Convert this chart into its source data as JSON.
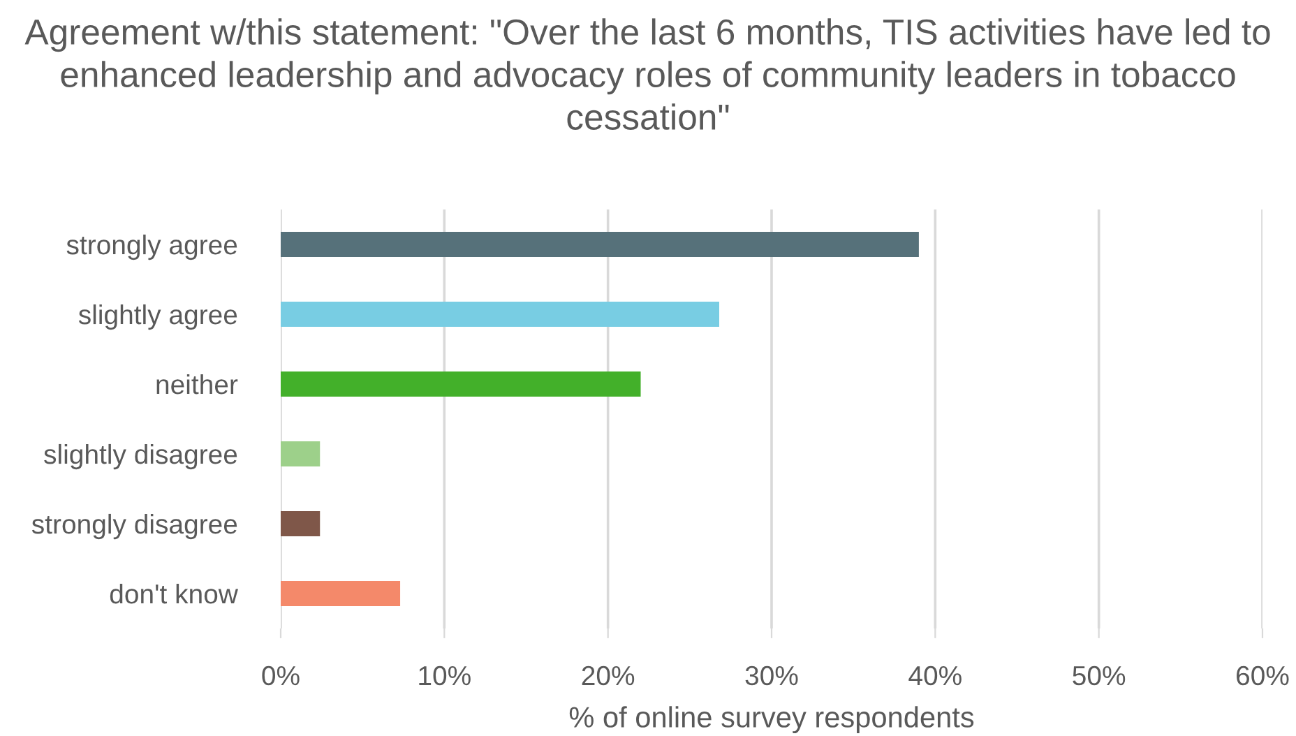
{
  "chart_data": {
    "type": "bar",
    "orientation": "horizontal",
    "title": "Agreement w/this statement: \"Over the last 6 months, TIS activities have led to enhanced leadership and advocacy roles of community leaders in tobacco cessation\"",
    "xlabel": "% of online survey respondents",
    "categories": [
      "strongly agree",
      "slightly agree",
      "neither",
      "slightly disagree",
      "strongly disagree",
      "don't know"
    ],
    "values": [
      39.0,
      26.8,
      22.0,
      2.4,
      2.4,
      7.3
    ],
    "colors": [
      "#56717a",
      "#78cde3",
      "#43b02a",
      "#9dd08a",
      "#7f5749",
      "#f4896a"
    ],
    "xlim": [
      0,
      60
    ],
    "xticks": [
      {
        "value": 0,
        "label": "0%"
      },
      {
        "value": 10,
        "label": "10%"
      },
      {
        "value": 20,
        "label": "20%"
      },
      {
        "value": 30,
        "label": "30%"
      },
      {
        "value": 40,
        "label": "40%"
      },
      {
        "value": 50,
        "label": "50%"
      },
      {
        "value": 60,
        "label": "60%"
      }
    ],
    "grid": "x",
    "legend": false
  }
}
